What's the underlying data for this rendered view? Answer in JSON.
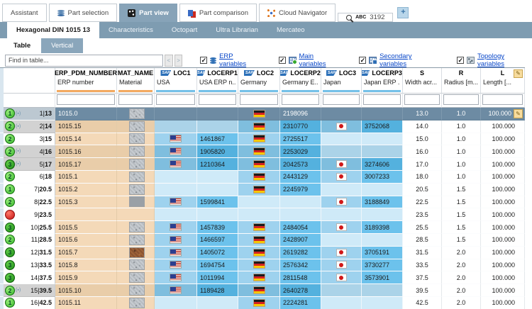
{
  "top_tabs": [
    {
      "label": "Assistant",
      "icon": null,
      "active": false
    },
    {
      "label": "Part selection",
      "icon": "database-icon",
      "active": false
    },
    {
      "label": "Part view",
      "icon": "cube-icon",
      "active": true
    },
    {
      "label": "Part comparison",
      "icon": "compare-icon",
      "active": false
    },
    {
      "label": "Cloud Navigator",
      "icon": "network-icon",
      "active": false
    }
  ],
  "search_tab": {
    "icon": "search-icon",
    "abc_label": "ABC",
    "value": "3192"
  },
  "plus_button": "+",
  "doc_tabs": [
    {
      "label": "Hexagonal DIN 1015 13",
      "active": true
    },
    {
      "label": "Characteristics",
      "active": false
    },
    {
      "label": "Octopart",
      "active": false
    },
    {
      "label": "Ultra Librarian",
      "active": false
    },
    {
      "label": "Mercateo",
      "active": false
    }
  ],
  "view_tabs": [
    {
      "label": "Table",
      "active": true
    },
    {
      "label": "Vertical",
      "active": false
    }
  ],
  "find_bar": {
    "placeholder": "Find in table...",
    "prev": "<",
    "next": ">",
    "filters": [
      {
        "label": "ERP variables",
        "icon": "erp-variables-icon",
        "checked": true
      },
      {
        "label": "Main variables",
        "icon": "main-variables-icon",
        "checked": true
      },
      {
        "label": "Secondary variables",
        "icon": "secondary-variables-icon",
        "checked": true
      },
      {
        "label": "Topology variables",
        "icon": "topology-variables-icon",
        "checked": true
      }
    ]
  },
  "table": {
    "columns": [
      {
        "key": "ERP_PDM_NUMBER",
        "desc": "ERP number",
        "underline": "orange",
        "sap": false
      },
      {
        "key": "MAT_NAME",
        "desc": "Material",
        "underline": "orange",
        "sap": false
      },
      {
        "key": "LOC1",
        "desc": "USA",
        "underline": "blue",
        "sap": true
      },
      {
        "key": "LOCERP1",
        "desc": "USA ERP n...",
        "underline": "blue",
        "sap": true
      },
      {
        "key": "LOC2",
        "desc": "Germany",
        "underline": "blue",
        "sap": true
      },
      {
        "key": "LOCERP2",
        "desc": "Germany E...",
        "underline": "blue",
        "sap": true
      },
      {
        "key": "LOC3",
        "desc": "Japan",
        "underline": "blue",
        "sap": true
      },
      {
        "key": "LOCERP3",
        "desc": "Japan ERP ...",
        "underline": "blue",
        "sap": true
      },
      {
        "key": "S",
        "desc": "Width acr...",
        "underline": "none",
        "sap": false
      },
      {
        "key": "R",
        "desc": "Radius [m...",
        "underline": "none",
        "sap": false
      },
      {
        "key": "L",
        "desc": "Length [...",
        "underline": "none",
        "sap": false,
        "edit_icon": true
      }
    ],
    "rows": [
      {
        "n": "1",
        "v": "13",
        "status": "1",
        "sub": true,
        "checked": false,
        "selected": true,
        "erp": "1015.0",
        "mat": "speckle",
        "us": false,
        "usErp": "",
        "de": true,
        "deErp": "2198096",
        "jp": false,
        "jpErp": "",
        "s": "13.0",
        "r": "1.0",
        "l": "100.000",
        "edit": true
      },
      {
        "n": "2",
        "v": "14",
        "status": "2",
        "sub": true,
        "checked": true,
        "selected": false,
        "erp": "1015.15",
        "mat": "speckle",
        "us": false,
        "usErp": "",
        "de": true,
        "deErp": "2310770",
        "jp": true,
        "jpErp": "3752068",
        "s": "14.0",
        "r": "1.0",
        "l": "100.000",
        "edit": false
      },
      {
        "n": "3",
        "v": "15",
        "status": "2",
        "sub": false,
        "checked": false,
        "selected": false,
        "erp": "1015.14",
        "mat": "speckle",
        "us": true,
        "usErp": "1461867",
        "de": true,
        "deErp": "2725517",
        "jp": false,
        "jpErp": "",
        "s": "15.0",
        "r": "1.0",
        "l": "100.000",
        "edit": false
      },
      {
        "n": "4",
        "v": "16",
        "status": "2",
        "sub": true,
        "checked": true,
        "selected": false,
        "erp": "1015.16",
        "mat": "speckle",
        "us": true,
        "usErp": "1905820",
        "de": true,
        "deErp": "2253029",
        "jp": false,
        "jpErp": "",
        "s": "16.0",
        "r": "1.0",
        "l": "100.000",
        "edit": false
      },
      {
        "n": "5",
        "v": "17",
        "status": "3",
        "sub": true,
        "checked": true,
        "selected": false,
        "erp": "1015.17",
        "mat": "speckle",
        "us": true,
        "usErp": "1210364",
        "de": true,
        "deErp": "2042573",
        "jp": true,
        "jpErp": "3274606",
        "s": "17.0",
        "r": "1.0",
        "l": "100.000",
        "edit": false
      },
      {
        "n": "6",
        "v": "18",
        "status": "2",
        "sub": false,
        "checked": false,
        "selected": false,
        "erp": "1015.1",
        "mat": "speckle",
        "us": false,
        "usErp": "",
        "de": true,
        "deErp": "2443129",
        "jp": true,
        "jpErp": "3007233",
        "s": "18.0",
        "r": "1.0",
        "l": "100.000",
        "edit": false
      },
      {
        "n": "7",
        "v": "20.5",
        "status": "1",
        "sub": false,
        "checked": false,
        "selected": false,
        "erp": "1015.2",
        "mat": "speckle",
        "us": false,
        "usErp": "",
        "de": true,
        "deErp": "2245979",
        "jp": false,
        "jpErp": "",
        "s": "20.5",
        "r": "1.5",
        "l": "100.000",
        "edit": false
      },
      {
        "n": "8",
        "v": "22.5",
        "status": "2",
        "sub": false,
        "checked": false,
        "selected": false,
        "erp": "1015.3",
        "mat": "plain",
        "us": true,
        "usErp": "1599841",
        "de": false,
        "deErp": "",
        "jp": true,
        "jpErp": "3188849",
        "s": "22.5",
        "r": "1.5",
        "l": "100.000",
        "edit": false
      },
      {
        "n": "9",
        "v": "23.5",
        "status": "red",
        "sub": false,
        "checked": false,
        "selected": false,
        "erp": "",
        "mat": null,
        "us": false,
        "usErp": "",
        "de": false,
        "deErp": "",
        "jp": false,
        "jpErp": "",
        "s": "23.5",
        "r": "1.5",
        "l": "100.000",
        "edit": false
      },
      {
        "n": "10",
        "v": "25.5",
        "status": "3",
        "sub": false,
        "checked": false,
        "selected": false,
        "erp": "1015.5",
        "mat": "speckle",
        "us": true,
        "usErp": "1457839",
        "de": true,
        "deErp": "2484054",
        "jp": true,
        "jpErp": "3189398",
        "s": "25.5",
        "r": "1.5",
        "l": "100.000",
        "edit": false
      },
      {
        "n": "11",
        "v": "28.5",
        "status": "2",
        "sub": false,
        "checked": false,
        "selected": false,
        "erp": "1015.6",
        "mat": "speckle",
        "us": true,
        "usErp": "1466597",
        "de": true,
        "deErp": "2428907",
        "jp": false,
        "jpErp": "",
        "s": "28.5",
        "r": "1.5",
        "l": "100.000",
        "edit": false
      },
      {
        "n": "12",
        "v": "31.5",
        "status": "3",
        "sub": false,
        "checked": false,
        "selected": false,
        "erp": "1015.7",
        "mat": "brown",
        "us": true,
        "usErp": "1405072",
        "de": true,
        "deErp": "2619282",
        "jp": true,
        "jpErp": "3705191",
        "s": "31.5",
        "r": "2.0",
        "l": "100.000",
        "edit": false
      },
      {
        "n": "13",
        "v": "33.5",
        "status": "3",
        "sub": false,
        "checked": false,
        "selected": false,
        "erp": "1015.8",
        "mat": "speckle",
        "us": true,
        "usErp": "1694754",
        "de": true,
        "deErp": "2576342",
        "jp": true,
        "jpErp": "3730277",
        "s": "33.5",
        "r": "2.0",
        "l": "100.000",
        "edit": false
      },
      {
        "n": "14",
        "v": "37.5",
        "status": "3",
        "sub": false,
        "checked": false,
        "selected": false,
        "erp": "1015.9",
        "mat": "speckle",
        "us": true,
        "usErp": "1011994",
        "de": true,
        "deErp": "2811548",
        "jp": true,
        "jpErp": "3573901",
        "s": "37.5",
        "r": "2.0",
        "l": "100.000",
        "edit": false
      },
      {
        "n": "15",
        "v": "39.5",
        "status": "2",
        "sub": true,
        "checked": true,
        "selected": false,
        "erp": "1015.10",
        "mat": "speckle",
        "us": true,
        "usErp": "1189428",
        "de": true,
        "deErp": "2640278",
        "jp": false,
        "jpErp": "",
        "s": "39.5",
        "r": "2.0",
        "l": "100.000",
        "edit": false
      },
      {
        "n": "16",
        "v": "42.5",
        "status": "1",
        "sub": false,
        "checked": false,
        "selected": false,
        "erp": "1015.11",
        "mat": "speckle",
        "us": false,
        "usErp": "",
        "de": true,
        "deErp": "2224281",
        "jp": false,
        "jpErp": "",
        "s": "42.5",
        "r": "2.0",
        "l": "100.000",
        "edit": false
      }
    ]
  }
}
